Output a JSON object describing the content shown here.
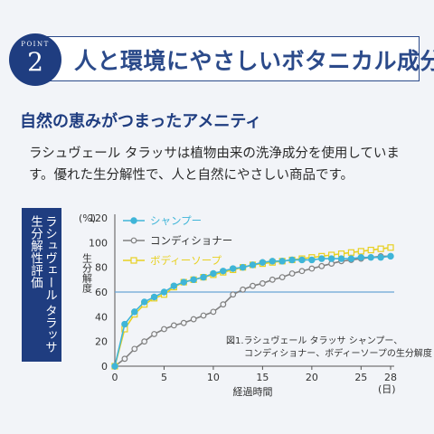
{
  "header": {
    "point_word": "POINT",
    "point_number": "2",
    "title": "人と環境にやさしいボタニカル成分"
  },
  "subtitle": "自然の恵みがつまったアメニティ",
  "description": "ラシュヴェール タラッサは植物由来の洗浄成分を使用しています。優れた生分解性で、人と自然にやさしい商品です。",
  "side_label": {
    "line1": "ラシュヴェール タラッサ",
    "line2": "生分解性評価"
  },
  "caption": {
    "line1": "図1.ラシュヴェール タラッサ シャンプー、",
    "line2": "コンディショナー、ボディーソープの生分解度"
  },
  "colors": {
    "accent": "#1f3d80",
    "shampoo": "#3fb5d8",
    "conditioner": "#808080",
    "bodysoap": "#e8d020",
    "reference_line": "#6aa3d5"
  },
  "chart_data": {
    "type": "line",
    "title": "",
    "xlabel": "経過時間",
    "ylabel": "生分解度",
    "y_unit": "(%)",
    "x_unit": "(日)",
    "xlim": [
      0,
      28
    ],
    "ylim": [
      0,
      120
    ],
    "x_ticks": [
      0,
      5,
      10,
      15,
      20,
      25,
      28
    ],
    "y_ticks": [
      0,
      20,
      40,
      60,
      80,
      100,
      120
    ],
    "reference_line": 60,
    "legend_position": "top-left",
    "x": [
      0,
      1,
      2,
      3,
      4,
      5,
      6,
      7,
      8,
      9,
      10,
      11,
      12,
      13,
      14,
      15,
      16,
      17,
      18,
      19,
      20,
      21,
      22,
      23,
      24,
      25,
      26,
      27,
      28
    ],
    "series": [
      {
        "name": "シャンプー",
        "marker": "circle",
        "values": [
          0,
          34,
          44,
          52,
          56,
          60,
          65,
          68,
          70,
          72,
          75,
          77,
          79,
          80,
          82,
          84,
          85,
          85,
          86,
          86,
          86,
          87,
          87,
          87,
          87,
          88,
          88,
          88,
          89
        ]
      },
      {
        "name": "コンディショナー",
        "marker": "open-circle",
        "values": [
          0,
          6,
          14,
          20,
          26,
          30,
          33,
          35,
          38,
          41,
          44,
          50,
          58,
          62,
          65,
          67,
          70,
          72,
          75,
          77,
          79,
          81,
          83,
          85,
          86,
          87,
          88,
          89,
          89
        ]
      },
      {
        "name": "ボディーソープ",
        "marker": "open-square",
        "values": [
          0,
          30,
          42,
          50,
          55,
          58,
          64,
          68,
          70,
          72,
          74,
          76,
          78,
          80,
          82,
          83,
          84,
          85,
          86,
          87,
          88,
          89,
          90,
          91,
          92,
          93,
          94,
          95,
          96
        ]
      }
    ]
  }
}
